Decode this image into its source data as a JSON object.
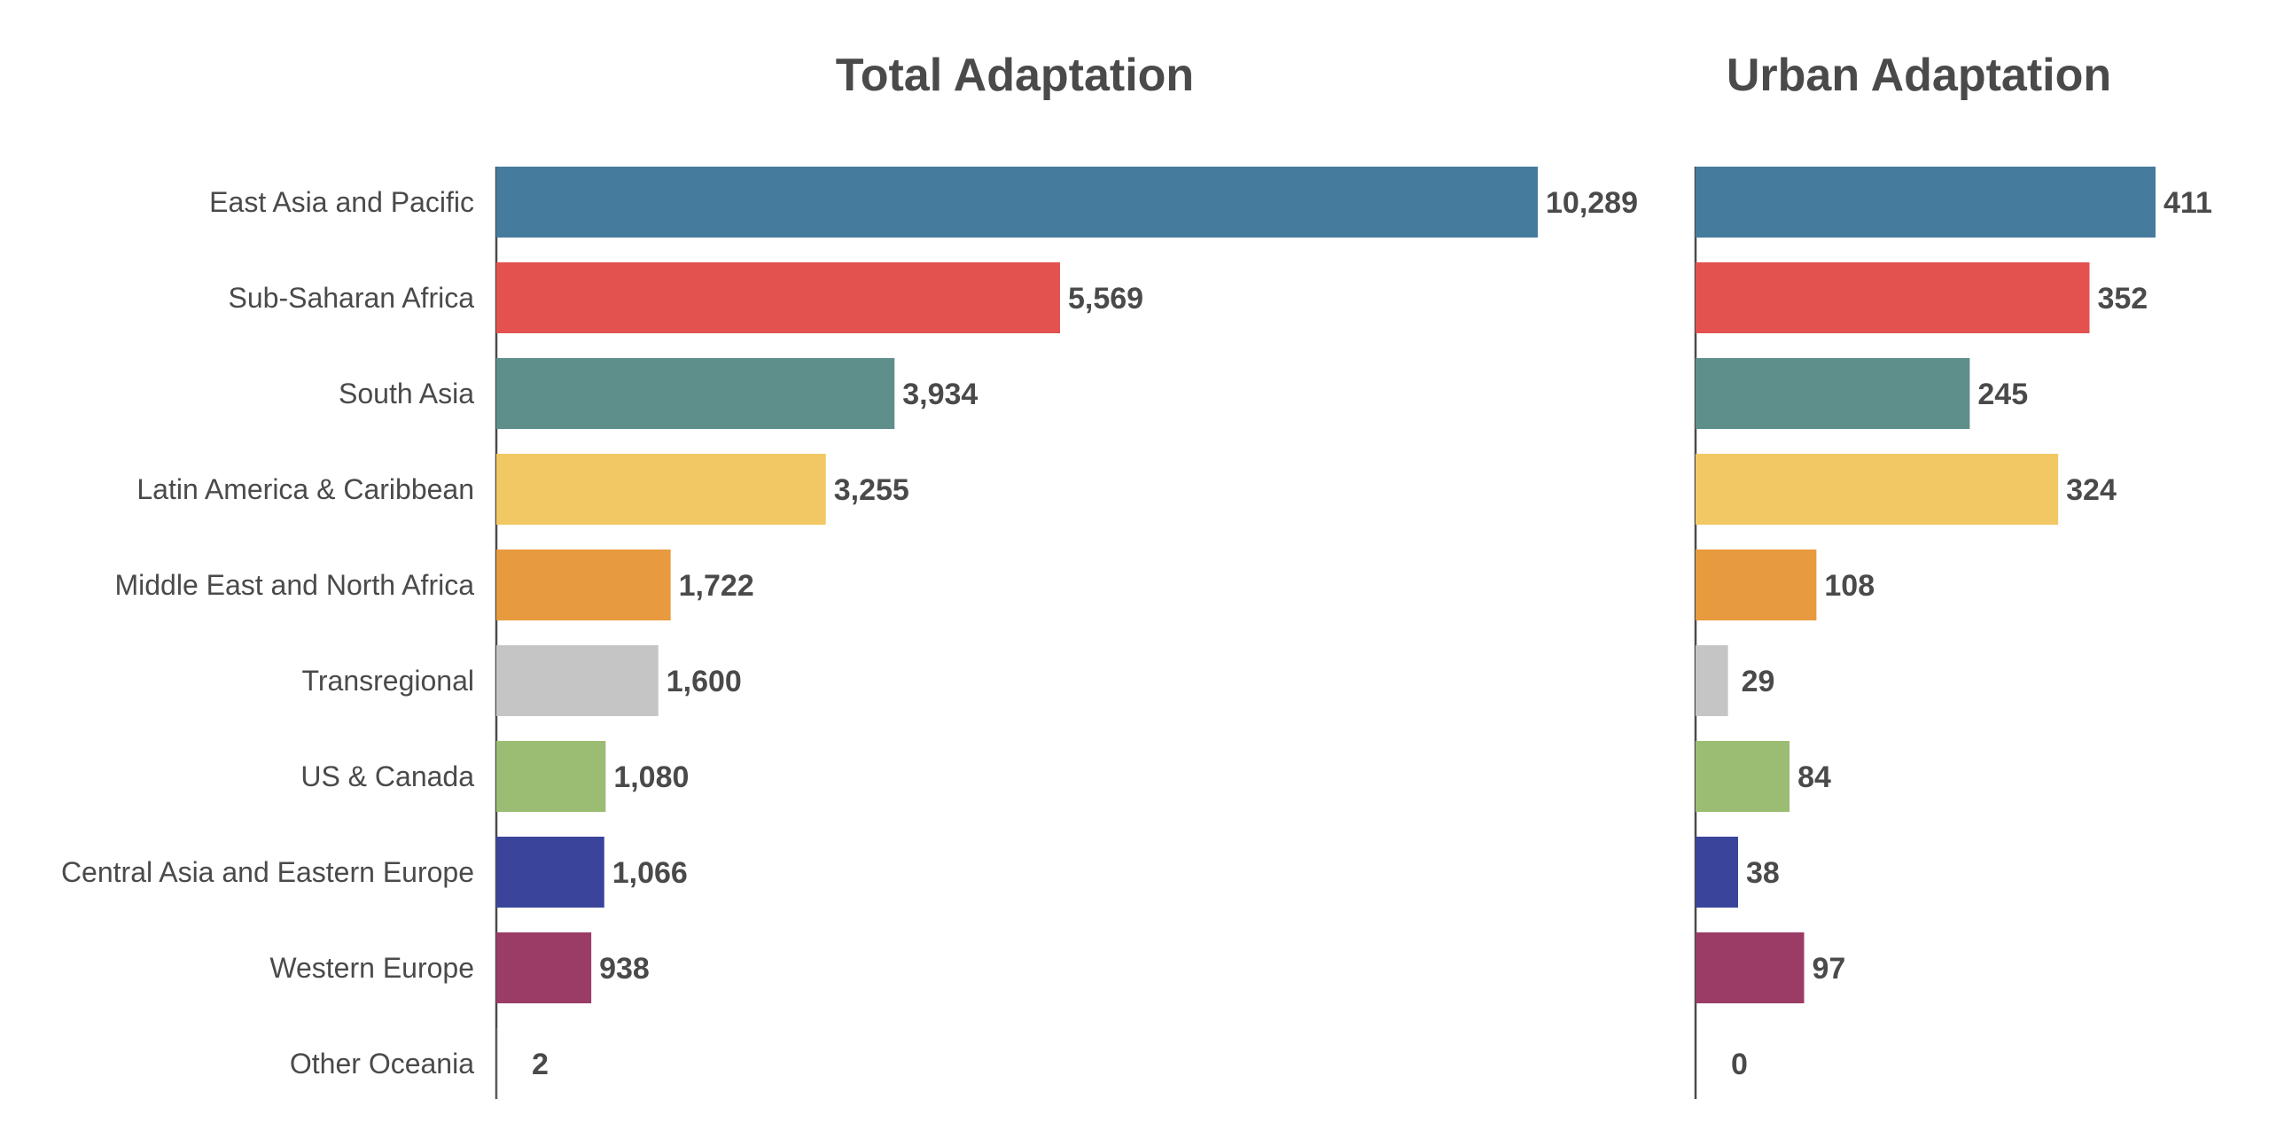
{
  "chart_data": [
    {
      "type": "bar",
      "orientation": "horizontal",
      "title": "Total Adaptation",
      "categories": [
        "East Asia and Pacific",
        "Sub-Saharan Africa",
        "South Asia",
        "Latin America & Caribbean",
        "Middle East and North Africa",
        "Transregional",
        "US & Canada",
        "Central Asia and Eastern Europe",
        "Western Europe",
        "Other Oceania"
      ],
      "values": [
        10289,
        5569,
        3934,
        3255,
        1722,
        1600,
        1080,
        1066,
        938,
        2
      ],
      "value_labels": [
        "10,289",
        "5,569",
        "3,934",
        "3,255",
        "1,722",
        "1,600",
        "1,080",
        "1,066",
        "938",
        "2"
      ],
      "xlim": [
        0,
        10289
      ],
      "grid": false
    },
    {
      "type": "bar",
      "orientation": "horizontal",
      "title": "Urban Adaptation",
      "categories": [
        "East Asia and Pacific",
        "Sub-Saharan Africa",
        "South Asia",
        "Latin America & Caribbean",
        "Middle East and North Africa",
        "Transregional",
        "US & Canada",
        "Central Asia and Eastern Europe",
        "Western Europe",
        "Other Oceania"
      ],
      "values": [
        411,
        352,
        245,
        324,
        108,
        29,
        84,
        38,
        97,
        0
      ],
      "value_labels": [
        "411",
        "352",
        "245",
        "324",
        "108",
        "29",
        "84",
        "38",
        "97",
        "0"
      ],
      "xlim": [
        0,
        411
      ],
      "grid": false
    }
  ],
  "colors": [
    "#457b9d",
    "#e3524f",
    "#5e8f8a",
    "#f2c864",
    "#e89a3e",
    "#c5c5c5",
    "#9bbd73",
    "#3a449a",
    "#9a3c65",
    "#cccccc"
  ]
}
